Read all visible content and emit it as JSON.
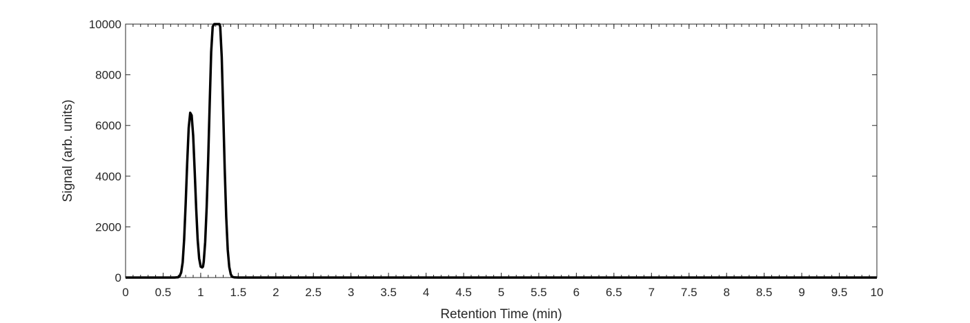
{
  "chart_data": {
    "type": "line",
    "title": "",
    "xlabel": "Retention Time (min)",
    "ylabel": "Signal (arb. units)",
    "xlim": [
      0,
      10
    ],
    "ylim": [
      0,
      10000
    ],
    "x_ticks": [
      0,
      0.5,
      1,
      1.5,
      2,
      2.5,
      3,
      3.5,
      4,
      4.5,
      5,
      5.5,
      6,
      6.5,
      7,
      7.5,
      8,
      8.5,
      9,
      9.5,
      10
    ],
    "x_tick_labels": [
      "0",
      "0.5",
      "1",
      "1.5",
      "2",
      "2.5",
      "3",
      "3.5",
      "4",
      "4.5",
      "5",
      "5.5",
      "6",
      "6.5",
      "7",
      "7.5",
      "8",
      "8.5",
      "9",
      "9.5",
      "10"
    ],
    "y_ticks": [
      0,
      2000,
      4000,
      6000,
      8000,
      10000
    ],
    "y_tick_labels": [
      "0",
      "2000",
      "4000",
      "6000",
      "8000",
      "10000"
    ],
    "grid": false,
    "box": true,
    "series": [
      {
        "color": "#000000",
        "x": [
          0,
          0.5,
          0.65,
          0.7,
          0.72,
          0.74,
          0.76,
          0.78,
          0.8,
          0.82,
          0.84,
          0.86,
          0.88,
          0.9,
          0.92,
          0.94,
          0.96,
          0.98,
          1.0,
          1.02,
          1.03,
          1.04,
          1.06,
          1.08,
          1.1,
          1.12,
          1.14,
          1.16,
          1.18,
          1.19,
          1.2,
          1.22,
          1.24,
          1.25,
          1.26,
          1.28,
          1.3,
          1.32,
          1.34,
          1.36,
          1.38,
          1.4,
          1.42,
          1.45,
          1.5,
          2,
          3,
          4,
          5,
          6,
          7,
          8,
          9,
          10
        ],
        "y": [
          0,
          0,
          0,
          10,
          60,
          200,
          600,
          1500,
          2900,
          4500,
          5900,
          6500,
          6400,
          5600,
          4200,
          2700,
          1500,
          750,
          430,
          400,
          430,
          620,
          1400,
          2800,
          4700,
          6900,
          8900,
          9900,
          10000,
          10000,
          10000,
          10000,
          10000,
          10000,
          9900,
          8700,
          6500,
          4300,
          2400,
          1100,
          420,
          130,
          30,
          5,
          0,
          0,
          0,
          0,
          0,
          0,
          0,
          0,
          0,
          0
        ]
      }
    ]
  }
}
